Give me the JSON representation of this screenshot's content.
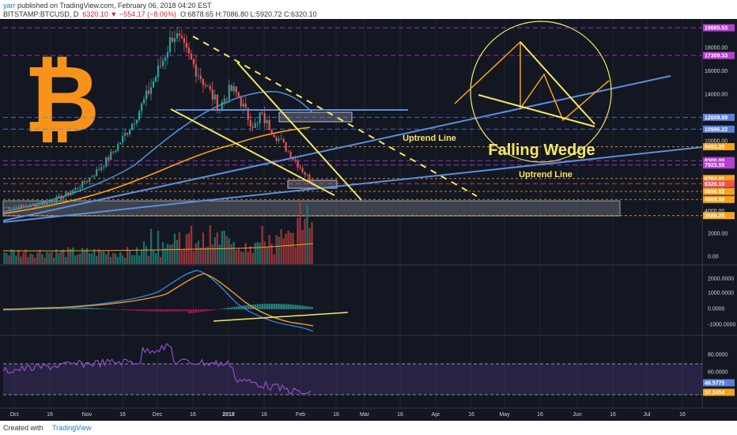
{
  "header": {
    "user": "yarr",
    "published_text": "published on TradingView.com, February 06, 2018 04:20 EST",
    "symbol": "BITSTAMP:BTCUSD, D",
    "last": "6320.10",
    "change": "−554.17 (−8.06%)",
    "ohlc": "O:6878.65  H:7086.80  L:5920.72  C:6320.10"
  },
  "footer": {
    "created_label": "Created with",
    "brand": "TradingView"
  },
  "annotations": {
    "pattern_title": "Falling Wedge",
    "uptrend_label_1": "Uptrend Line",
    "uptrend_label_2": "Uptrend Line",
    "logo_glyph": "₿"
  },
  "colors": {
    "background": "#131722",
    "candle_up": "#26a69a",
    "candle_down": "#ef5350",
    "trend_yellow": "#f5e663",
    "uptrend_blue": "#5b8fd9",
    "ma_orange": "#f7a21b",
    "ma_blue": "#4a90c8",
    "level_purple": "#a14bd1",
    "macd_line": "#2a86d8",
    "signal_line": "#f0962b",
    "rsi_line": "#9c4fd6"
  },
  "chart_data": [
    {
      "type": "candlestick",
      "y_scale": "linear",
      "yticks": [
        "18000.00",
        "16000.00",
        "14000.00",
        "12000.00",
        "10000.00",
        "8000.00",
        "6000.00",
        "4000.00"
      ],
      "xticks": [
        "Oct",
        "16",
        "Nov",
        "16",
        "Dec",
        "16",
        "2018",
        "16",
        "Feb",
        "16",
        "Mar",
        "16",
        "Apr",
        "16",
        "May",
        "16",
        "Jun",
        "16",
        "Jul",
        "16"
      ],
      "price_levels": [
        {
          "label": "19685.53",
          "color": "#b83dd6",
          "value": 19685.53
        },
        {
          "label": "17309.33",
          "color": "#b83dd6",
          "value": 17309.33
        },
        {
          "label": "12009.89",
          "color": "#5b7fd9",
          "value": 12009.89
        },
        {
          "label": "10996.22",
          "color": "#5b7fd9",
          "value": 10996.22
        },
        {
          "label": "9493.25",
          "color": "#f7a21b",
          "value": 9493.25
        },
        {
          "label": "8300.00",
          "color": "#b83dd6",
          "value": 8300.0
        },
        {
          "label": "7923.59",
          "color": "#b83dd6",
          "value": 7923.59
        },
        {
          "label": "6762.01",
          "color": "#f7a21b",
          "value": 6762.01
        },
        {
          "label": "6320.10",
          "color": "#ef5350",
          "value": 6320.1
        },
        {
          "label": "5656.92",
          "color": "#f7a21b",
          "value": 5656.92
        },
        {
          "label": "4969.58",
          "color": "#f7a21b",
          "value": 4969.58
        },
        {
          "label": "3586.25",
          "color": "#f7a21b",
          "value": 3586.25
        }
      ]
    },
    {
      "type": "bar",
      "name": "volume",
      "yticks": [
        "2000.00",
        "0.00"
      ]
    },
    {
      "type": "line",
      "name": "macd",
      "yticks": [
        "2000.0000",
        "1000.0000",
        "0.0000",
        "-1000.0000"
      ]
    },
    {
      "type": "line",
      "name": "rsi",
      "yticks": [
        "80.0000",
        "60.0000"
      ],
      "badges": [
        {
          "label": "48.5775",
          "color": "#5b7fd9"
        },
        {
          "label": "37.2454",
          "color": "#f7a21b"
        }
      ]
    }
  ]
}
